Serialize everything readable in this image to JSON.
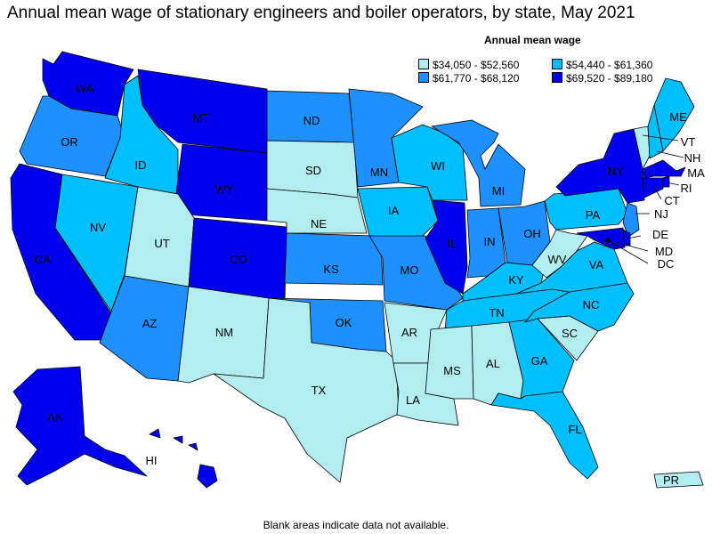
{
  "title": "Annual mean wage of stationary engineers and boiler operators, by state, May 2021",
  "legend": {
    "title": "Annual mean wage",
    "bins": [
      {
        "label": "$34,050 - $52,560",
        "color": "#b2eeef"
      },
      {
        "label": "$54,440 - $61,360",
        "color": "#00bfff"
      },
      {
        "label": "$61,770 - $68,120",
        "color": "#1e90ff"
      },
      {
        "label": "$69,520 - $89,180",
        "color": "#0000ee"
      }
    ]
  },
  "footnote": "Blank areas indicate data not available.",
  "states": {
    "WA": {
      "label": "WA",
      "bin": 3
    },
    "OR": {
      "label": "OR",
      "bin": 2
    },
    "CA": {
      "label": "CA",
      "bin": 3
    },
    "NV": {
      "label": "NV",
      "bin": 1
    },
    "ID": {
      "label": "ID",
      "bin": 1
    },
    "MT": {
      "label": "MT",
      "bin": 3
    },
    "WY": {
      "label": "WY",
      "bin": 3
    },
    "UT": {
      "label": "UT",
      "bin": 0
    },
    "AZ": {
      "label": "AZ",
      "bin": 2
    },
    "CO": {
      "label": "CO",
      "bin": 3
    },
    "NM": {
      "label": "NM",
      "bin": 0
    },
    "ND": {
      "label": "ND",
      "bin": 2
    },
    "SD": {
      "label": "SD",
      "bin": 0
    },
    "NE": {
      "label": "NE",
      "bin": 0
    },
    "KS": {
      "label": "KS",
      "bin": 2
    },
    "OK": {
      "label": "OK",
      "bin": 2
    },
    "TX": {
      "label": "TX",
      "bin": 0
    },
    "MN": {
      "label": "MN",
      "bin": 2
    },
    "IA": {
      "label": "IA",
      "bin": 1
    },
    "MO": {
      "label": "MO",
      "bin": 2
    },
    "AR": {
      "label": "AR",
      "bin": 0
    },
    "LA": {
      "label": "LA",
      "bin": 0
    },
    "WI": {
      "label": "WI",
      "bin": 1
    },
    "IL": {
      "label": "IL",
      "bin": 3
    },
    "MI": {
      "label": "MI",
      "bin": 2
    },
    "IN": {
      "label": "IN",
      "bin": 2
    },
    "OH": {
      "label": "OH",
      "bin": 2
    },
    "KY": {
      "label": "KY",
      "bin": 1
    },
    "TN": {
      "label": "TN",
      "bin": 1
    },
    "MS": {
      "label": "MS",
      "bin": 0
    },
    "AL": {
      "label": "AL",
      "bin": 0
    },
    "GA": {
      "label": "GA",
      "bin": 1
    },
    "FL": {
      "label": "FL",
      "bin": 1
    },
    "SC": {
      "label": "SC",
      "bin": 0
    },
    "NC": {
      "label": "NC",
      "bin": 1
    },
    "VA": {
      "label": "VA",
      "bin": 1
    },
    "WV": {
      "label": "WV",
      "bin": 0
    },
    "PA": {
      "label": "PA",
      "bin": 1
    },
    "NY": {
      "label": "NY",
      "bin": 3
    },
    "VT": {
      "label": "VT",
      "bin": 0
    },
    "NH": {
      "label": "NH",
      "bin": 1
    },
    "ME": {
      "label": "ME",
      "bin": 1
    },
    "MA": {
      "label": "MA",
      "bin": 3
    },
    "RI": {
      "label": "RI",
      "bin": 3
    },
    "CT": {
      "label": "CT",
      "bin": 3
    },
    "NJ": {
      "label": "NJ",
      "bin": 2
    },
    "DE": {
      "label": "DE",
      "bin": 3
    },
    "MD": {
      "label": "MD",
      "bin": 3
    },
    "DC": {
      "label": "DC",
      "bin": 3
    },
    "AK": {
      "label": "AK",
      "bin": 3
    },
    "HI": {
      "label": "HI",
      "bin": 3
    },
    "PR": {
      "label": "PR",
      "bin": 0
    }
  }
}
